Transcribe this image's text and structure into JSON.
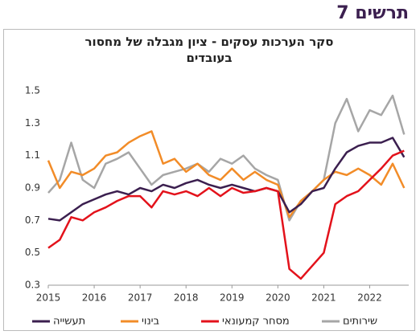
{
  "chart_data": {
    "type": "line",
    "title": "תרשים 7",
    "subtitle": "סקר הערכות עסקים - ציון מגבלה של מחסור בעובדים",
    "x": [
      2015,
      2015.25,
      2015.5,
      2015.75,
      2016,
      2016.25,
      2016.5,
      2016.75,
      2017,
      2017.25,
      2017.5,
      2017.75,
      2018,
      2018.25,
      2018.5,
      2018.75,
      2019,
      2019.25,
      2019.5,
      2019.75,
      2020,
      2020.25,
      2020.5,
      2020.75,
      2021,
      2021.25,
      2021.5,
      2021.75,
      2022,
      2022.25,
      2022.5,
      2022.75
    ],
    "series": [
      {
        "name": "תעשייה",
        "color": "#3b1f4f",
        "values": [
          0.71,
          0.7,
          0.75,
          0.8,
          0.83,
          0.86,
          0.88,
          0.86,
          0.9,
          0.88,
          0.92,
          0.9,
          0.93,
          0.95,
          0.92,
          0.9,
          0.92,
          0.9,
          0.88,
          0.9,
          0.88,
          0.75,
          0.8,
          0.88,
          0.9,
          1.02,
          1.12,
          1.16,
          1.18,
          1.18,
          1.21,
          1.09
        ]
      },
      {
        "name": "בינוי",
        "color": "#f28c28",
        "values": [
          1.07,
          0.9,
          1.0,
          0.98,
          1.02,
          1.1,
          1.12,
          1.18,
          1.22,
          1.25,
          1.05,
          1.08,
          1.0,
          1.05,
          0.98,
          0.95,
          1.02,
          0.95,
          1.0,
          0.95,
          0.92,
          0.72,
          0.82,
          0.88,
          0.95,
          1.0,
          0.98,
          1.02,
          0.98,
          0.92,
          1.05,
          0.9
        ]
      },
      {
        "name": "מסחר קמעונאי",
        "color": "#e3121b",
        "values": [
          0.53,
          0.58,
          0.72,
          0.7,
          0.75,
          0.78,
          0.82,
          0.85,
          0.85,
          0.78,
          0.88,
          0.86,
          0.88,
          0.85,
          0.9,
          0.85,
          0.9,
          0.87,
          0.88,
          0.9,
          0.88,
          0.4,
          0.34,
          0.42,
          0.5,
          0.8,
          0.85,
          0.88,
          0.95,
          1.02,
          1.1,
          1.13
        ]
      },
      {
        "name": "שירותים",
        "color": "#a6a6a6",
        "values": [
          0.87,
          0.95,
          1.18,
          0.95,
          0.9,
          1.05,
          1.08,
          1.12,
          1.02,
          0.92,
          0.98,
          1.0,
          1.02,
          1.05,
          1.0,
          1.08,
          1.05,
          1.1,
          1.02,
          0.98,
          0.95,
          0.7,
          0.82,
          0.88,
          0.95,
          1.3,
          1.45,
          1.25,
          1.38,
          1.35,
          1.47,
          1.23
        ]
      }
    ],
    "xlim": [
      2015,
      2022.85
    ],
    "xticks": [
      2015,
      2016,
      2017,
      2018,
      2019,
      2020,
      2021,
      2022
    ],
    "ylim": [
      0.3,
      1.5
    ],
    "yticks": [
      0.3,
      0.5,
      0.7,
      0.9,
      1.1,
      1.3,
      1.5
    ],
    "grid": false,
    "legend": "bottom"
  }
}
